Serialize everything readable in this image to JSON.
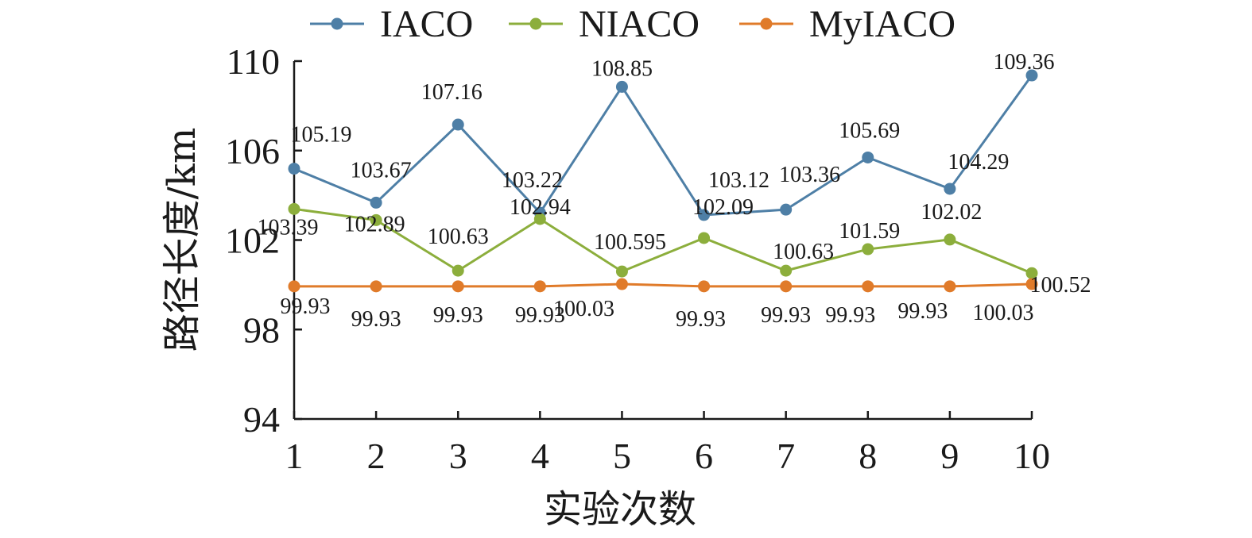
{
  "chart_data": {
    "type": "line",
    "x": [
      1,
      2,
      3,
      4,
      5,
      6,
      7,
      8,
      9,
      10
    ],
    "xlabel": "实验次数",
    "ylabel": "路径长度/km",
    "xticks": [
      "1",
      "2",
      "3",
      "4",
      "5",
      "6",
      "7",
      "8",
      "9",
      "10"
    ],
    "yticks": [
      "94",
      "98",
      "102",
      "106",
      "110"
    ],
    "ylim": [
      94,
      110
    ],
    "grid": false,
    "legend_position": "top",
    "series": [
      {
        "name": "IACO",
        "color": "#4e7fa6",
        "values": [
          105.19,
          103.67,
          107.16,
          103.22,
          108.85,
          103.12,
          103.36,
          105.69,
          104.29,
          109.36
        ],
        "labels": [
          "105.19",
          "103.67",
          "107.16",
          "103.22",
          "108.85",
          "103.12",
          "103.36",
          "105.69",
          "104.29",
          "109.36"
        ]
      },
      {
        "name": "NIACO",
        "color": "#8cae3c",
        "values": [
          103.39,
          102.89,
          100.63,
          102.94,
          100.595,
          102.09,
          100.63,
          101.59,
          102.02,
          100.52
        ],
        "labels": [
          "103.39",
          "102.89",
          "100.63",
          "102.94",
          "100.595",
          "102.09",
          "100.63",
          "101.59",
          "102.02",
          "100.52"
        ]
      },
      {
        "name": "MyIACO",
        "color": "#e07b2a",
        "values": [
          99.93,
          99.93,
          99.93,
          99.93,
          100.03,
          99.93,
          99.93,
          99.93,
          99.93,
          100.03
        ],
        "labels": [
          "99.93",
          "99.93",
          "99.93",
          "99.93",
          "100.03",
          "99.93",
          "99.93",
          "99.93",
          "99.93",
          "100.03"
        ]
      }
    ]
  }
}
